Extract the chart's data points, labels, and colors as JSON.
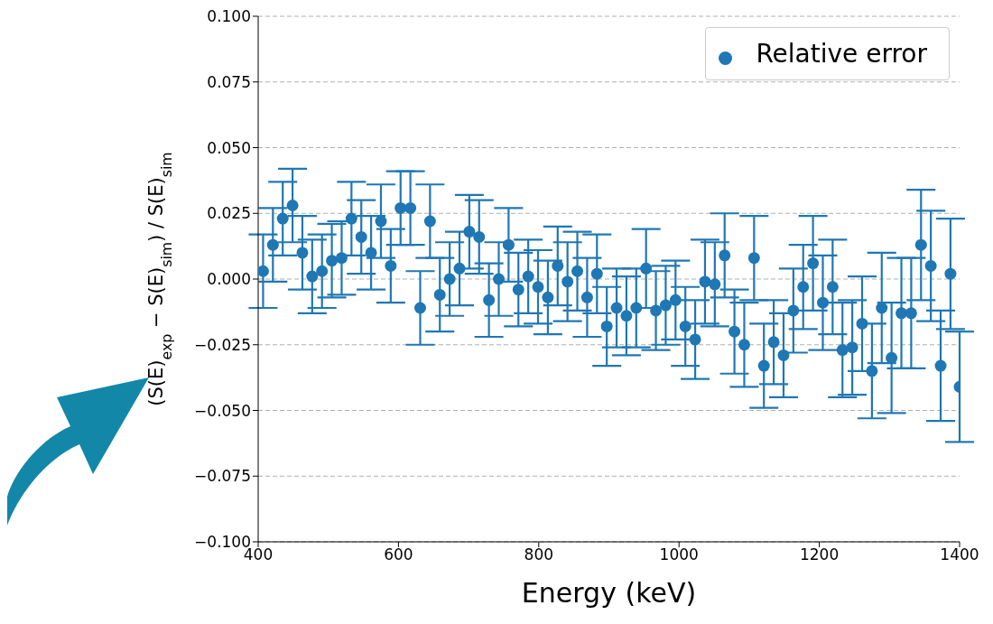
{
  "chart_data": {
    "type": "scatter",
    "xlabel": "Energy (keV)",
    "ylabel": "(S(E)$_{exp}$ − S(E)$_{sim}$) / S(E)$_{sim}$",
    "x": [
      407,
      421,
      435,
      449,
      463,
      477,
      491,
      505,
      519,
      533,
      547,
      561,
      575,
      589,
      603,
      617,
      631,
      645,
      659,
      673,
      687,
      701,
      715,
      729,
      743,
      757,
      771,
      785,
      799,
      813,
      827,
      841,
      855,
      869,
      883,
      897,
      911,
      925,
      939,
      953,
      967,
      981,
      995,
      1009,
      1023,
      1037,
      1051,
      1065,
      1079,
      1093,
      1107,
      1121,
      1135,
      1149,
      1163,
      1177,
      1191,
      1205,
      1219,
      1233,
      1247,
      1261,
      1275,
      1289,
      1303,
      1317,
      1331,
      1345,
      1359,
      1373,
      1387,
      1400
    ],
    "series": [
      {
        "name": "Relative error",
        "color": "#1f77b4",
        "values": [
          0.003,
          0.013,
          0.023,
          0.028,
          0.01,
          0.001,
          0.003,
          0.007,
          0.008,
          0.023,
          0.016,
          0.01,
          0.022,
          0.005,
          0.027,
          0.027,
          -0.011,
          0.022,
          -0.006,
          0.0,
          0.004,
          0.018,
          0.016,
          -0.008,
          0.0,
          0.013,
          -0.004,
          0.001,
          -0.003,
          -0.007,
          0.005,
          -0.001,
          0.003,
          -0.007,
          0.002,
          -0.018,
          -0.011,
          -0.014,
          -0.011,
          0.004,
          -0.012,
          -0.01,
          -0.008,
          -0.018,
          -0.023,
          -0.001,
          -0.002,
          0.009,
          -0.02,
          -0.025,
          0.008,
          -0.033,
          -0.024,
          -0.029,
          -0.012,
          -0.003,
          0.006,
          -0.009,
          -0.003,
          -0.027,
          -0.026,
          -0.017,
          -0.035,
          -0.011,
          -0.03,
          -0.013,
          -0.013,
          0.013,
          0.005,
          -0.033,
          0.002,
          -0.041
        ],
        "errors": [
          0.014,
          0.014,
          0.014,
          0.014,
          0.014,
          0.014,
          0.014,
          0.014,
          0.014,
          0.014,
          0.014,
          0.014,
          0.014,
          0.014,
          0.014,
          0.014,
          0.014,
          0.014,
          0.014,
          0.014,
          0.014,
          0.014,
          0.014,
          0.014,
          0.014,
          0.014,
          0.014,
          0.014,
          0.014,
          0.014,
          0.015,
          0.015,
          0.015,
          0.015,
          0.015,
          0.015,
          0.015,
          0.015,
          0.015,
          0.015,
          0.015,
          0.015,
          0.015,
          0.015,
          0.015,
          0.016,
          0.016,
          0.016,
          0.016,
          0.016,
          0.016,
          0.016,
          0.016,
          0.016,
          0.016,
          0.016,
          0.018,
          0.018,
          0.018,
          0.018,
          0.018,
          0.018,
          0.018,
          0.021,
          0.021,
          0.021,
          0.021,
          0.021,
          0.021,
          0.021,
          0.021,
          0.021
        ]
      }
    ],
    "xlim": [
      400,
      1400
    ],
    "xticks": [
      400,
      600,
      800,
      1000,
      1200,
      1400
    ],
    "ylim": [
      -0.1,
      0.1
    ],
    "yticks": [
      {
        "value": -0.1,
        "label": "−0.100"
      },
      {
        "value": -0.075,
        "label": "−0.075"
      },
      {
        "value": -0.05,
        "label": "−0.050"
      },
      {
        "value": -0.025,
        "label": "−0.025"
      },
      {
        "value": 0,
        "label": "0.000"
      },
      {
        "value": 0.025,
        "label": "0.025"
      },
      {
        "value": 0.05,
        "label": "0.050"
      },
      {
        "value": 0.075,
        "label": "0.075"
      },
      {
        "value": 0.1,
        "label": "0.100"
      }
    ],
    "grid": "y",
    "legend": "top right",
    "marker": "circle"
  }
}
